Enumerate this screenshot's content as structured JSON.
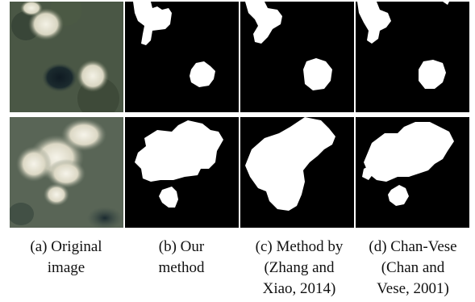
{
  "figure": {
    "captions": [
      {
        "lines": [
          "(a) Original",
          "image"
        ]
      },
      {
        "lines": [
          "(b) Our",
          "method"
        ]
      },
      {
        "lines": [
          "(c) Method by",
          "(Zhang and",
          "Xiao, 2014)"
        ]
      },
      {
        "lines": [
          "(d) Chan-Vese",
          "(Chan and",
          "Vese, 2001)"
        ]
      }
    ]
  }
}
